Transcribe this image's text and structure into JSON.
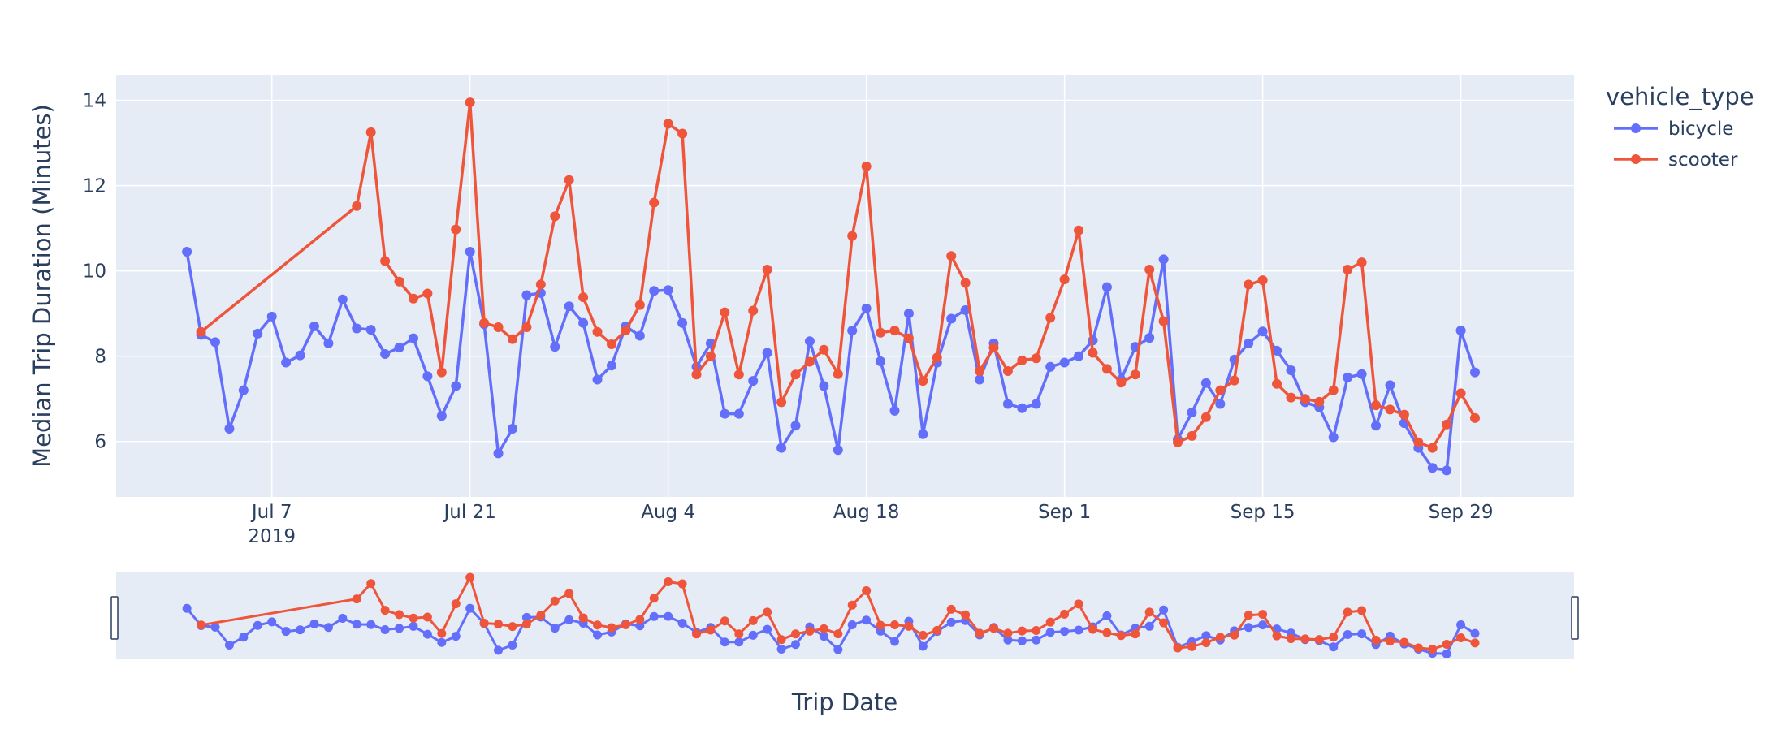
{
  "chart_data": {
    "type": "line",
    "title": "",
    "xlabel": "Trip Date",
    "ylabel": "Median Trip Duration (Minutes)",
    "x_tick_labels": [
      {
        "date": "2019-07-07",
        "label": "Jul 7",
        "sublabel": "2019"
      },
      {
        "date": "2019-07-21",
        "label": "Jul 21",
        "sublabel": ""
      },
      {
        "date": "2019-08-04",
        "label": "Aug 4",
        "sublabel": ""
      },
      {
        "date": "2019-08-18",
        "label": "Aug 18",
        "sublabel": ""
      },
      {
        "date": "2019-09-01",
        "label": "Sep 1",
        "sublabel": ""
      },
      {
        "date": "2019-09-15",
        "label": "Sep 15",
        "sublabel": ""
      },
      {
        "date": "2019-09-29",
        "label": "Sep 29",
        "sublabel": ""
      }
    ],
    "y_ticks": [
      6,
      8,
      10,
      12,
      14
    ],
    "xlim": [
      "2019-06-26",
      "2019-10-07"
    ],
    "ylim": [
      4.7,
      14.6
    ],
    "grid": true,
    "legend": {
      "title": "vehicle_type",
      "position": "top-right outside"
    },
    "rangeslider": true,
    "series": [
      {
        "name": "bicycle",
        "color": "#636efa",
        "x": [
          "2019-07-01",
          "2019-07-02",
          "2019-07-03",
          "2019-07-04",
          "2019-07-05",
          "2019-07-06",
          "2019-07-07",
          "2019-07-08",
          "2019-07-09",
          "2019-07-10",
          "2019-07-11",
          "2019-07-12",
          "2019-07-13",
          "2019-07-14",
          "2019-07-15",
          "2019-07-16",
          "2019-07-17",
          "2019-07-18",
          "2019-07-19",
          "2019-07-20",
          "2019-07-21",
          "2019-07-22",
          "2019-07-23",
          "2019-07-24",
          "2019-07-25",
          "2019-07-26",
          "2019-07-27",
          "2019-07-28",
          "2019-07-29",
          "2019-07-30",
          "2019-07-31",
          "2019-08-01",
          "2019-08-02",
          "2019-08-03",
          "2019-08-04",
          "2019-08-05",
          "2019-08-06",
          "2019-08-07",
          "2019-08-08",
          "2019-08-09",
          "2019-08-10",
          "2019-08-11",
          "2019-08-12",
          "2019-08-13",
          "2019-08-14",
          "2019-08-15",
          "2019-08-16",
          "2019-08-17",
          "2019-08-18",
          "2019-08-19",
          "2019-08-20",
          "2019-08-21",
          "2019-08-22",
          "2019-08-23",
          "2019-08-24",
          "2019-08-25",
          "2019-08-26",
          "2019-08-27",
          "2019-08-28",
          "2019-08-29",
          "2019-08-30",
          "2019-08-31",
          "2019-09-01",
          "2019-09-02",
          "2019-09-03",
          "2019-09-04",
          "2019-09-05",
          "2019-09-06",
          "2019-09-07",
          "2019-09-08",
          "2019-09-09",
          "2019-09-10",
          "2019-09-11",
          "2019-09-12",
          "2019-09-13",
          "2019-09-14",
          "2019-09-15",
          "2019-09-16",
          "2019-09-17",
          "2019-09-18",
          "2019-09-19",
          "2019-09-20",
          "2019-09-21",
          "2019-09-22",
          "2019-09-23",
          "2019-09-24",
          "2019-09-25",
          "2019-09-26",
          "2019-09-27",
          "2019-09-28",
          "2019-09-29",
          "2019-09-30"
        ],
        "y": [
          10.45,
          8.5,
          8.33,
          6.3,
          7.2,
          8.53,
          8.93,
          7.85,
          8.02,
          8.7,
          8.3,
          9.33,
          8.65,
          8.62,
          8.05,
          8.2,
          8.42,
          7.53,
          6.6,
          7.3,
          10.45,
          8.75,
          5.72,
          6.3,
          9.43,
          9.48,
          8.22,
          9.17,
          8.78,
          7.45,
          7.78,
          8.7,
          8.48,
          9.53,
          9.55,
          8.78,
          7.75,
          8.3,
          6.65,
          6.65,
          7.42,
          8.08,
          5.85,
          6.37,
          8.35,
          7.3,
          5.8,
          8.6,
          9.12,
          7.88,
          6.72,
          9.0,
          6.17,
          7.85,
          8.88,
          9.08,
          7.45,
          8.3,
          6.88,
          6.78,
          6.88,
          7.75,
          7.85,
          8.0,
          8.37,
          9.62,
          7.45,
          8.22,
          8.43,
          10.27,
          6.05,
          6.68,
          7.37,
          6.88,
          7.92,
          8.3,
          8.58,
          8.13,
          7.67,
          6.92,
          6.8,
          6.1,
          7.5,
          7.58,
          6.37,
          7.32,
          6.43,
          5.85,
          5.38,
          5.32,
          8.6,
          7.62
        ]
      },
      {
        "name": "scooter",
        "color": "#ef553b",
        "x": [
          "2019-07-02",
          "2019-07-13",
          "2019-07-14",
          "2019-07-15",
          "2019-07-16",
          "2019-07-17",
          "2019-07-18",
          "2019-07-19",
          "2019-07-20",
          "2019-07-21",
          "2019-07-22",
          "2019-07-23",
          "2019-07-24",
          "2019-07-25",
          "2019-07-26",
          "2019-07-27",
          "2019-07-28",
          "2019-07-29",
          "2019-07-30",
          "2019-07-31",
          "2019-08-01",
          "2019-08-02",
          "2019-08-03",
          "2019-08-04",
          "2019-08-05",
          "2019-08-06",
          "2019-08-07",
          "2019-08-08",
          "2019-08-09",
          "2019-08-10",
          "2019-08-11",
          "2019-08-12",
          "2019-08-13",
          "2019-08-14",
          "2019-08-15",
          "2019-08-16",
          "2019-08-17",
          "2019-08-18",
          "2019-08-19",
          "2019-08-20",
          "2019-08-21",
          "2019-08-22",
          "2019-08-23",
          "2019-08-24",
          "2019-08-25",
          "2019-08-26",
          "2019-08-27",
          "2019-08-28",
          "2019-08-29",
          "2019-08-30",
          "2019-08-31",
          "2019-09-01",
          "2019-09-02",
          "2019-09-03",
          "2019-09-04",
          "2019-09-05",
          "2019-09-06",
          "2019-09-07",
          "2019-09-08",
          "2019-09-09",
          "2019-09-10",
          "2019-09-11",
          "2019-09-12",
          "2019-09-13",
          "2019-09-14",
          "2019-09-15",
          "2019-09-16",
          "2019-09-17",
          "2019-09-18",
          "2019-09-19",
          "2019-09-20",
          "2019-09-21",
          "2019-09-22",
          "2019-09-23",
          "2019-09-24",
          "2019-09-25",
          "2019-09-26",
          "2019-09-27",
          "2019-09-28",
          "2019-09-29",
          "2019-09-30"
        ],
        "y": [
          8.57,
          11.52,
          13.25,
          10.23,
          9.75,
          9.35,
          9.47,
          7.62,
          10.97,
          13.95,
          8.78,
          8.68,
          8.4,
          8.68,
          9.68,
          11.28,
          12.13,
          9.38,
          8.57,
          8.28,
          8.6,
          9.2,
          11.6,
          13.45,
          13.22,
          7.57,
          8.0,
          9.03,
          7.57,
          9.07,
          10.03,
          6.92,
          7.57,
          7.87,
          8.15,
          7.58,
          10.82,
          12.45,
          8.55,
          8.6,
          8.42,
          7.42,
          7.97,
          10.35,
          9.72,
          7.65,
          8.2,
          7.65,
          7.9,
          7.95,
          8.9,
          9.8,
          10.95,
          8.08,
          7.7,
          7.38,
          7.57,
          10.03,
          8.82,
          5.98,
          6.13,
          6.57,
          7.2,
          7.43,
          9.68,
          9.78,
          7.35,
          7.03,
          7.0,
          6.93,
          7.2,
          10.03,
          10.2,
          6.85,
          6.75,
          6.63,
          5.98,
          5.85,
          6.4,
          7.13,
          6.55
        ]
      }
    ]
  }
}
